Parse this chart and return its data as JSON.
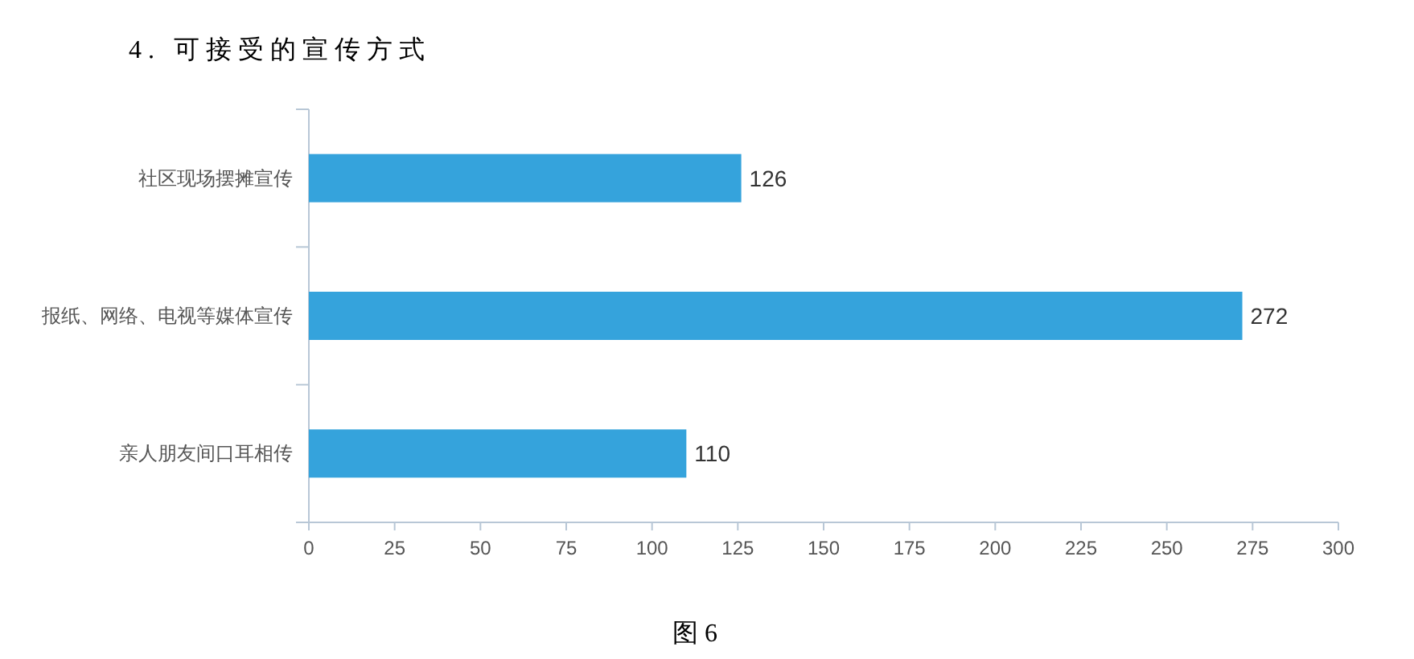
{
  "chart_data": {
    "type": "bar",
    "orientation": "horizontal",
    "title": "4. 可接受的宣传方式",
    "categories": [
      "社区现场摆摊宣传",
      "报纸、网络、电视等媒体宣传",
      "亲人朋友间口耳相传"
    ],
    "values": [
      126,
      272,
      110
    ],
    "color": "#35a3dc",
    "xlim": [
      0,
      300
    ],
    "xticks": [
      0,
      25,
      50,
      75,
      100,
      125,
      150,
      175,
      200,
      225,
      250,
      275,
      300
    ],
    "grid": false,
    "data_labels": true,
    "annotations": [
      "图 6"
    ]
  }
}
